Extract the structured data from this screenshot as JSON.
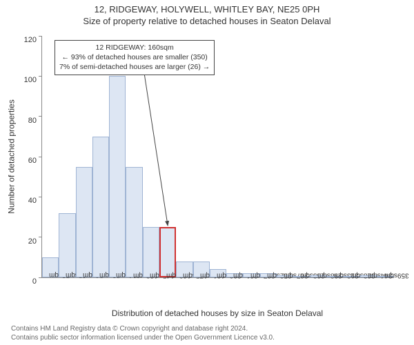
{
  "title_line1": "12, RIDGEWAY, HOLYWELL, WHITLEY BAY, NE25 0PH",
  "title_line2": "Size of property relative to detached houses in Seaton Delaval",
  "ylabel": "Number of detached properties",
  "xlabel": "Distribution of detached houses by size in Seaton Delaval",
  "chart": {
    "type": "histogram",
    "ylim": [
      0,
      120
    ],
    "ytick_step": 20,
    "bar_fill": "#dde6f3",
    "bar_border": "#9fb4d4",
    "highlight_border": "#d03030",
    "axis_color": "#888888",
    "background_color": "#ffffff",
    "title_fontsize": 13,
    "label_fontsize": 12,
    "tick_fontsize": 10,
    "bars": [
      {
        "label": "53sqm",
        "value": 10,
        "highlight": false
      },
      {
        "label": "68sqm",
        "value": 32,
        "highlight": false
      },
      {
        "label": "84sqm",
        "value": 55,
        "highlight": false
      },
      {
        "label": "99sqm",
        "value": 70,
        "highlight": false
      },
      {
        "label": "114sqm",
        "value": 100,
        "highlight": false
      },
      {
        "label": "130sqm",
        "value": 55,
        "highlight": false
      },
      {
        "label": "145sqm",
        "value": 25,
        "highlight": false
      },
      {
        "label": "160sqm",
        "value": 25,
        "highlight": true
      },
      {
        "label": "175sqm",
        "value": 8,
        "highlight": false
      },
      {
        "label": "191sqm",
        "value": 8,
        "highlight": false
      },
      {
        "label": "206sqm",
        "value": 4,
        "highlight": false
      },
      {
        "label": "221sqm",
        "value": 2,
        "highlight": false
      },
      {
        "label": "237sqm",
        "value": 2,
        "highlight": false
      },
      {
        "label": "252sqm",
        "value": 2,
        "highlight": false
      },
      {
        "label": "267sqm",
        "value": 1,
        "highlight": false
      },
      {
        "label": "283sqm",
        "value": 0,
        "highlight": false
      },
      {
        "label": "298sqm",
        "value": 1,
        "highlight": false
      },
      {
        "label": "313sqm",
        "value": 0,
        "highlight": false
      },
      {
        "label": "328sqm",
        "value": 0,
        "highlight": false
      },
      {
        "label": "344sqm",
        "value": 1,
        "highlight": false
      },
      {
        "label": "359sqm",
        "value": 0,
        "highlight": false
      }
    ]
  },
  "annotation": {
    "line1": "12 RIDGEWAY: 160sqm",
    "line2": "← 93% of detached houses are smaller (350)",
    "line3": "7% of semi-detached houses are larger (26) →",
    "box_border": "#444444",
    "box_bg": "#ffffff",
    "arrow_color": "#444444",
    "fontsize": 10.5
  },
  "credit_line1": "Contains HM Land Registry data © Crown copyright and database right 2024.",
  "credit_line2": "Contains public sector information licensed under the Open Government Licence v3.0.",
  "colors": {
    "text": "#333333",
    "credit_text": "#666666"
  }
}
